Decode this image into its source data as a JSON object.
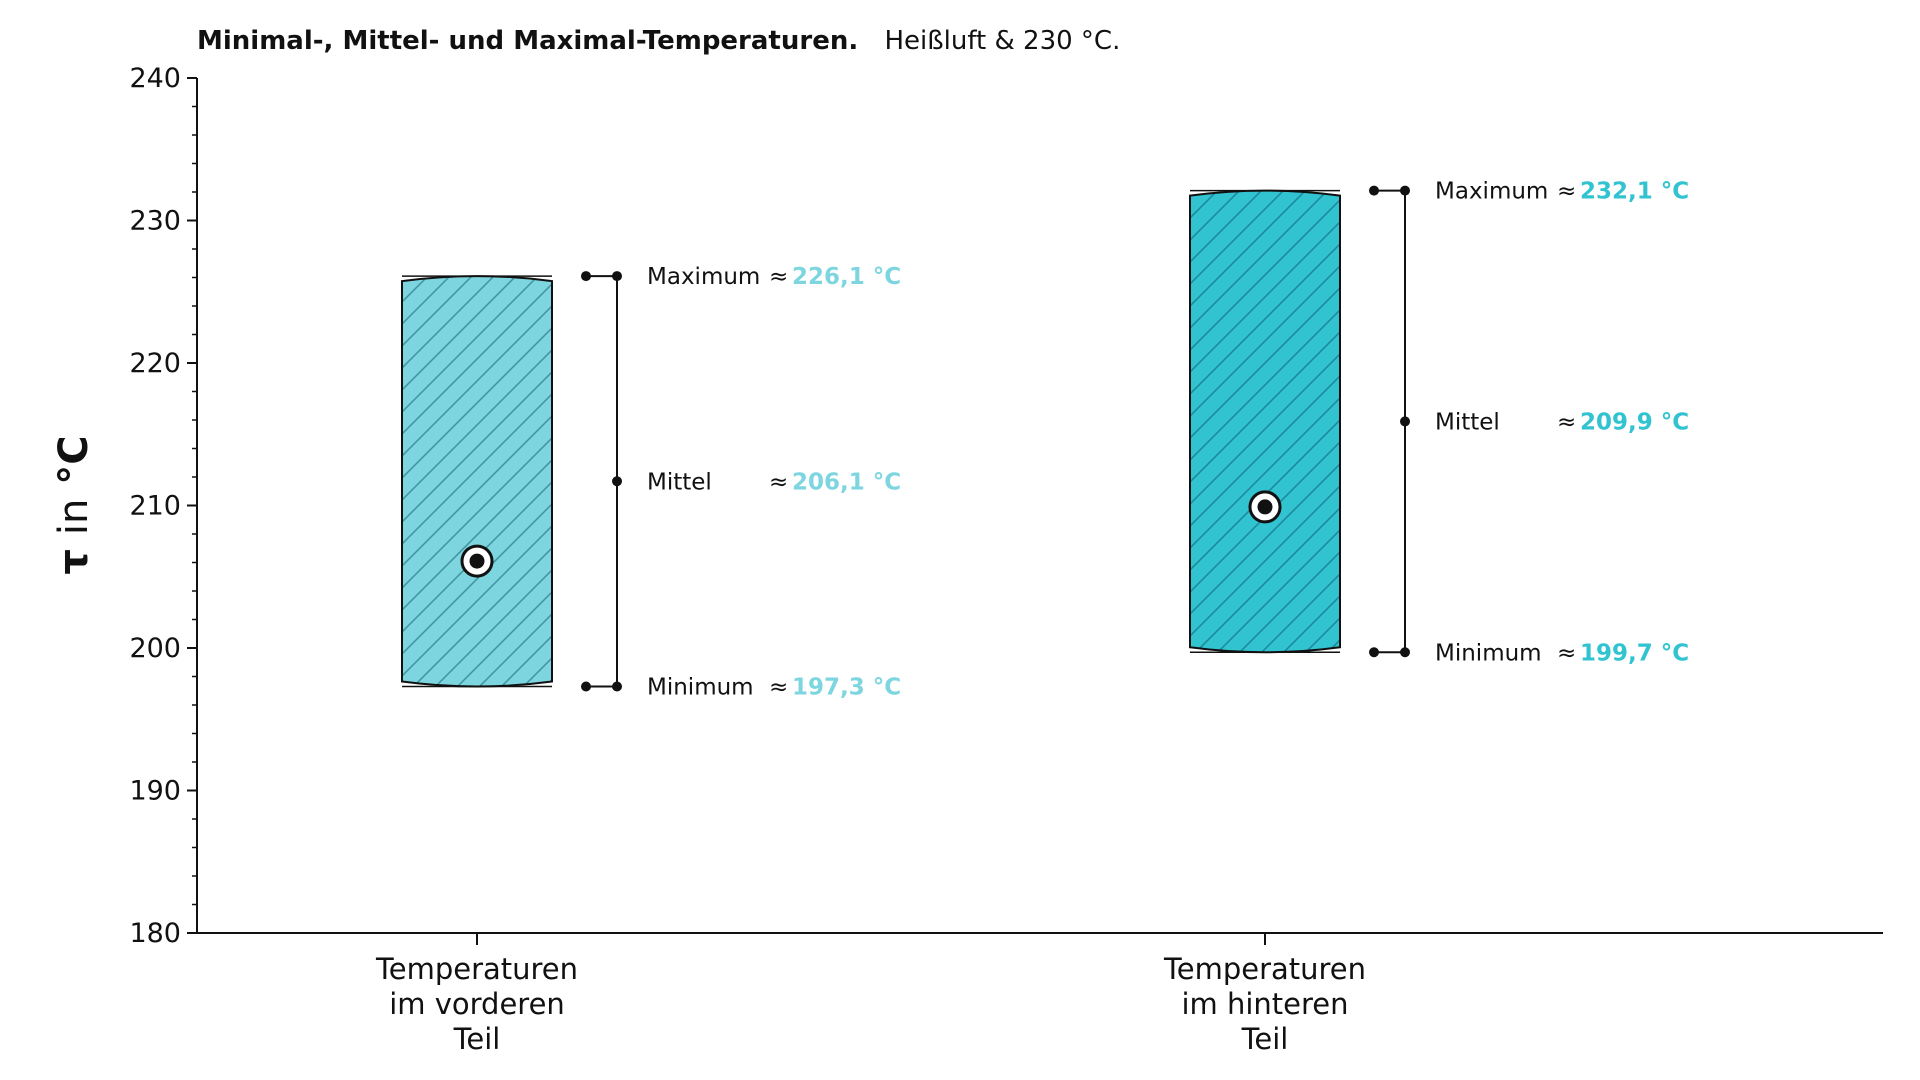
{
  "chart_data": {
    "type": "bar",
    "title": "Minimal-, Mittel- und Maximal-Temperaturen.",
    "subtitle": "Heißluft & 230 °C.",
    "ylabel": {
      "symbol": "τ",
      "word": "in",
      "unit": "°C"
    },
    "ylim": [
      180,
      240
    ],
    "yticks": [
      "180",
      "190",
      "200",
      "210",
      "220",
      "230",
      "240"
    ],
    "ytick_values": [
      180,
      190,
      200,
      210,
      220,
      230,
      240
    ],
    "grid": false,
    "legend": "none",
    "approx_symbol": "≈",
    "categories": [
      {
        "label_lines": [
          "Temperaturen",
          "im vorderen",
          "Teil"
        ],
        "min": 197.3,
        "mean": 206.1,
        "max": 226.1,
        "color": "#7dd6df",
        "annotations": {
          "max_key": "Maximum",
          "max_val": "226,1 °C",
          "mean_key": "Mittel",
          "mean_val": "206,1 °C",
          "min_key": "Minimum",
          "min_val": "197,3 °C"
        }
      },
      {
        "label_lines": [
          "Temperaturen",
          "im hinteren",
          "Teil"
        ],
        "min": 199.7,
        "mean": 209.9,
        "max": 232.1,
        "color": "#32c3d0",
        "annotations": {
          "max_key": "Maximum",
          "max_val": "232,1 °C",
          "mean_key": "Mittel",
          "mean_val": "209,9 °C",
          "min_key": "Minimum",
          "min_val": "199,7 °C"
        }
      }
    ]
  }
}
